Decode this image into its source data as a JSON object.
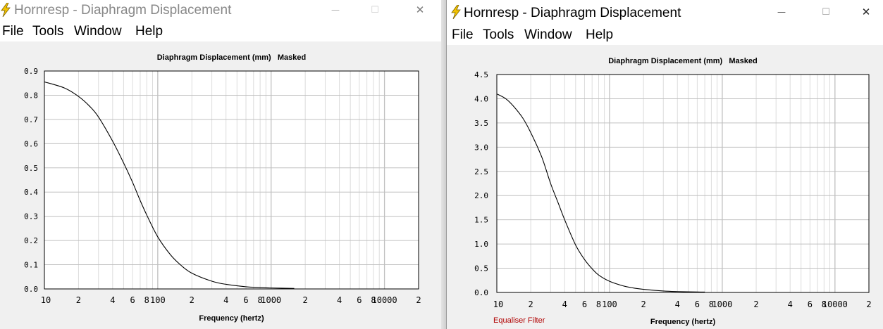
{
  "colors": {
    "curve": "#000000",
    "grid_major": "#c0c0c0",
    "grid_minor": "#dcdcdc",
    "status_red": "#b00000",
    "icon_yellow": "#f2c200"
  },
  "menu": [
    "File",
    "Tools",
    "Window",
    "Help"
  ],
  "windows": [
    {
      "title": "Hornresp - Diaphragm Displacement",
      "icon": "lightning-icon",
      "title_active": false,
      "controls": {
        "minimize": "—",
        "maximize": "☐",
        "close": "✕"
      },
      "plot_title": "Diaphragm Displacement (mm)   Masked",
      "xlabel": "Frequency (hertz)",
      "status": ""
    },
    {
      "title": "Hornresp - Diaphragm Displacement",
      "icon": "lightning-icon",
      "title_active": true,
      "controls": {
        "minimize": "—",
        "maximize": "☐",
        "close": "✕"
      },
      "plot_title": "Diaphragm Displacement (mm)   Masked",
      "xlabel": "Frequency (hertz)",
      "status": "Equaliser Filter"
    }
  ],
  "chart_data": [
    {
      "type": "line",
      "title": "Diaphragm Displacement (mm)   Masked",
      "xlabel": "Frequency (hertz)",
      "ylabel": "",
      "x_scale": "log",
      "xlim": [
        10,
        20000
      ],
      "ylim": [
        0,
        0.9
      ],
      "grid": true,
      "yticks": [
        "0.0",
        "0.1",
        "0.2",
        "0.3",
        "0.4",
        "0.5",
        "0.6",
        "0.7",
        "0.8",
        "0.9"
      ],
      "xtick_labels": [
        {
          "x": 10,
          "label": "10"
        },
        {
          "x": 20,
          "label": "2"
        },
        {
          "x": 40,
          "label": "4"
        },
        {
          "x": 60,
          "label": "6"
        },
        {
          "x": 80,
          "label": "8"
        },
        {
          "x": 100,
          "label": "100"
        },
        {
          "x": 200,
          "label": "2"
        },
        {
          "x": 400,
          "label": "4"
        },
        {
          "x": 600,
          "label": "6"
        },
        {
          "x": 800,
          "label": "8"
        },
        {
          "x": 1000,
          "label": "1000"
        },
        {
          "x": 2000,
          "label": "2"
        },
        {
          "x": 4000,
          "label": "4"
        },
        {
          "x": 6000,
          "label": "6"
        },
        {
          "x": 8000,
          "label": "8"
        },
        {
          "x": 10000,
          "label": "10000"
        },
        {
          "x": 20000,
          "label": "2"
        }
      ],
      "series": [
        {
          "x": [
            10,
            15,
            20,
            25,
            30,
            40,
            50,
            60,
            70,
            80,
            100,
            130,
            160,
            200,
            300,
            400,
            600,
            800,
            1000,
            1600
          ],
          "y": [
            0.855,
            0.83,
            0.795,
            0.755,
            0.71,
            0.61,
            0.52,
            0.44,
            0.365,
            0.305,
            0.215,
            0.14,
            0.098,
            0.065,
            0.032,
            0.019,
            0.009,
            0.006,
            0.004,
            0.002
          ]
        }
      ]
    },
    {
      "type": "line",
      "title": "Diaphragm Displacement (mm)   Masked",
      "xlabel": "Frequency (hertz)",
      "ylabel": "",
      "x_scale": "log",
      "xlim": [
        10,
        20000
      ],
      "ylim": [
        0,
        4.5
      ],
      "grid": true,
      "yticks": [
        "0.0",
        "0.5",
        "1.0",
        "1.5",
        "2.0",
        "2.5",
        "3.0",
        "3.5",
        "4.0",
        "4.5"
      ],
      "xtick_labels": [
        {
          "x": 10,
          "label": "10"
        },
        {
          "x": 20,
          "label": "2"
        },
        {
          "x": 40,
          "label": "4"
        },
        {
          "x": 60,
          "label": "6"
        },
        {
          "x": 80,
          "label": "8"
        },
        {
          "x": 100,
          "label": "100"
        },
        {
          "x": 200,
          "label": "2"
        },
        {
          "x": 400,
          "label": "4"
        },
        {
          "x": 600,
          "label": "6"
        },
        {
          "x": 800,
          "label": "8"
        },
        {
          "x": 1000,
          "label": "1000"
        },
        {
          "x": 2000,
          "label": "2"
        },
        {
          "x": 4000,
          "label": "4"
        },
        {
          "x": 6000,
          "label": "6"
        },
        {
          "x": 8000,
          "label": "8"
        },
        {
          "x": 10000,
          "label": "10000"
        },
        {
          "x": 20000,
          "label": "2"
        }
      ],
      "series": [
        {
          "x": [
            10,
            12,
            14,
            17,
            20,
            25,
            30,
            35,
            40,
            50,
            60,
            70,
            80,
            100,
            130,
            160,
            200,
            300,
            400,
            600,
            700
          ],
          "y": [
            4.1,
            4.0,
            3.85,
            3.6,
            3.3,
            2.8,
            2.25,
            1.85,
            1.5,
            0.98,
            0.68,
            0.49,
            0.36,
            0.23,
            0.14,
            0.095,
            0.065,
            0.03,
            0.018,
            0.01,
            0.008
          ]
        }
      ]
    }
  ]
}
